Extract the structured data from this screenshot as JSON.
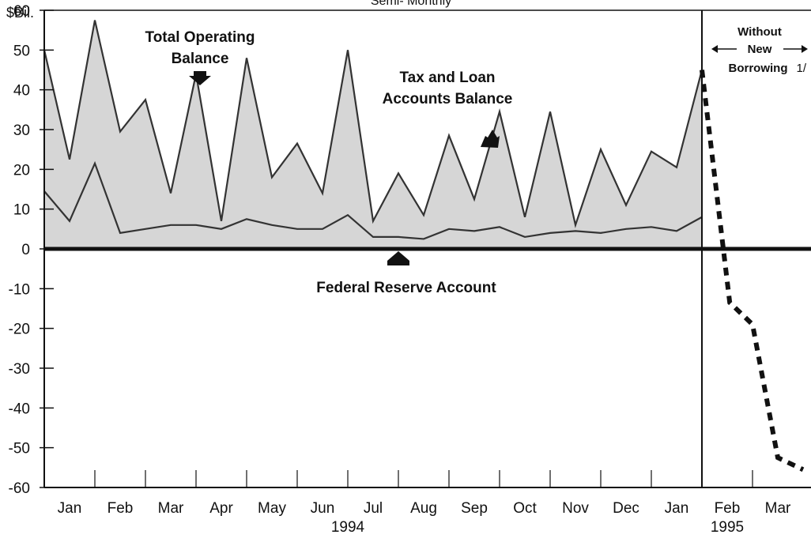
{
  "chart_data": {
    "type": "area",
    "y_unit_label": "$Bil.",
    "subtitle": "Semi- Monthly",
    "ylim": [
      -60,
      60
    ],
    "y_ticks": [
      60,
      50,
      40,
      30,
      20,
      10,
      0,
      -10,
      -20,
      -30,
      -40,
      -50,
      -60
    ],
    "x_range": [
      0,
      20
    ],
    "months": [
      {
        "label": "Jan",
        "x": 0.5
      },
      {
        "label": "Feb",
        "x": 1.5
      },
      {
        "label": "Mar",
        "x": 2.5
      },
      {
        "label": "Apr",
        "x": 3.5
      },
      {
        "label": "May",
        "x": 4.5
      },
      {
        "label": "Jun",
        "x": 5.5
      },
      {
        "label": "Jul",
        "x": 6.5
      },
      {
        "label": "Aug",
        "x": 7.5
      },
      {
        "label": "Sep",
        "x": 8.5
      },
      {
        "label": "Oct",
        "x": 9.5
      },
      {
        "label": "Nov",
        "x": 10.5
      },
      {
        "label": "Dec",
        "x": 11.5
      },
      {
        "label": "Jan",
        "x": 12.5
      },
      {
        "label": "Feb",
        "x": 13.5
      },
      {
        "label": "Mar",
        "x": 14.5
      }
    ],
    "year_labels": [
      {
        "label": "1994",
        "x": 6
      },
      {
        "label": "1995",
        "x": 13.5
      }
    ],
    "divider_x": 13,
    "series": [
      {
        "name": "Total Operating Balance",
        "x": [
          0,
          0.5,
          1,
          1.5,
          2,
          2.5,
          3,
          3.5,
          4,
          4.5,
          5,
          5.5,
          6,
          6.5,
          7,
          7.5,
          8,
          8.5,
          9,
          9.5,
          10,
          10.5,
          11,
          11.5,
          12,
          12.5,
          13
        ],
        "values": [
          50,
          22.5,
          57.5,
          29.5,
          37.5,
          14,
          44,
          7,
          48,
          18,
          26.5,
          14,
          50,
          7,
          19,
          8.5,
          28.5,
          12.5,
          34.5,
          8,
          34.5,
          6,
          25,
          11,
          24.5,
          20.5,
          45
        ]
      },
      {
        "name": "Federal Reserve Account",
        "x": [
          0,
          0.5,
          1,
          1.5,
          2,
          2.5,
          3,
          3.5,
          4,
          4.5,
          5,
          5.5,
          6,
          6.5,
          7,
          7.5,
          8,
          8.5,
          9,
          9.5,
          10,
          10.5,
          11,
          11.5,
          12,
          12.5,
          13
        ],
        "values": [
          14.5,
          7,
          21.5,
          4,
          5,
          6,
          6,
          5,
          7.5,
          6,
          5,
          5,
          8.5,
          3,
          3,
          2.5,
          5,
          4.5,
          5.5,
          3,
          4,
          4.5,
          4,
          5,
          5.5,
          4.5,
          8
        ]
      },
      {
        "name": "Without New Borrowing",
        "x": [
          13,
          13.55,
          14,
          14.5,
          15
        ],
        "values": [
          45,
          -13.5,
          -19,
          -52.5,
          -55.5
        ]
      }
    ],
    "zero_line": 0,
    "annotations": {
      "total_operating": [
        "Total Operating",
        "Balance"
      ],
      "tax_loan": [
        "Tax and Loan",
        "Accounts Balance"
      ],
      "federal_reserve": "Federal Reserve Account",
      "without_new_borrowing": [
        "Without",
        "New",
        "Borrowing"
      ],
      "footnote_marker": "1/"
    },
    "colors": {
      "fill": "#d6d6d6",
      "line": "#333333",
      "axis": "#111111"
    }
  }
}
